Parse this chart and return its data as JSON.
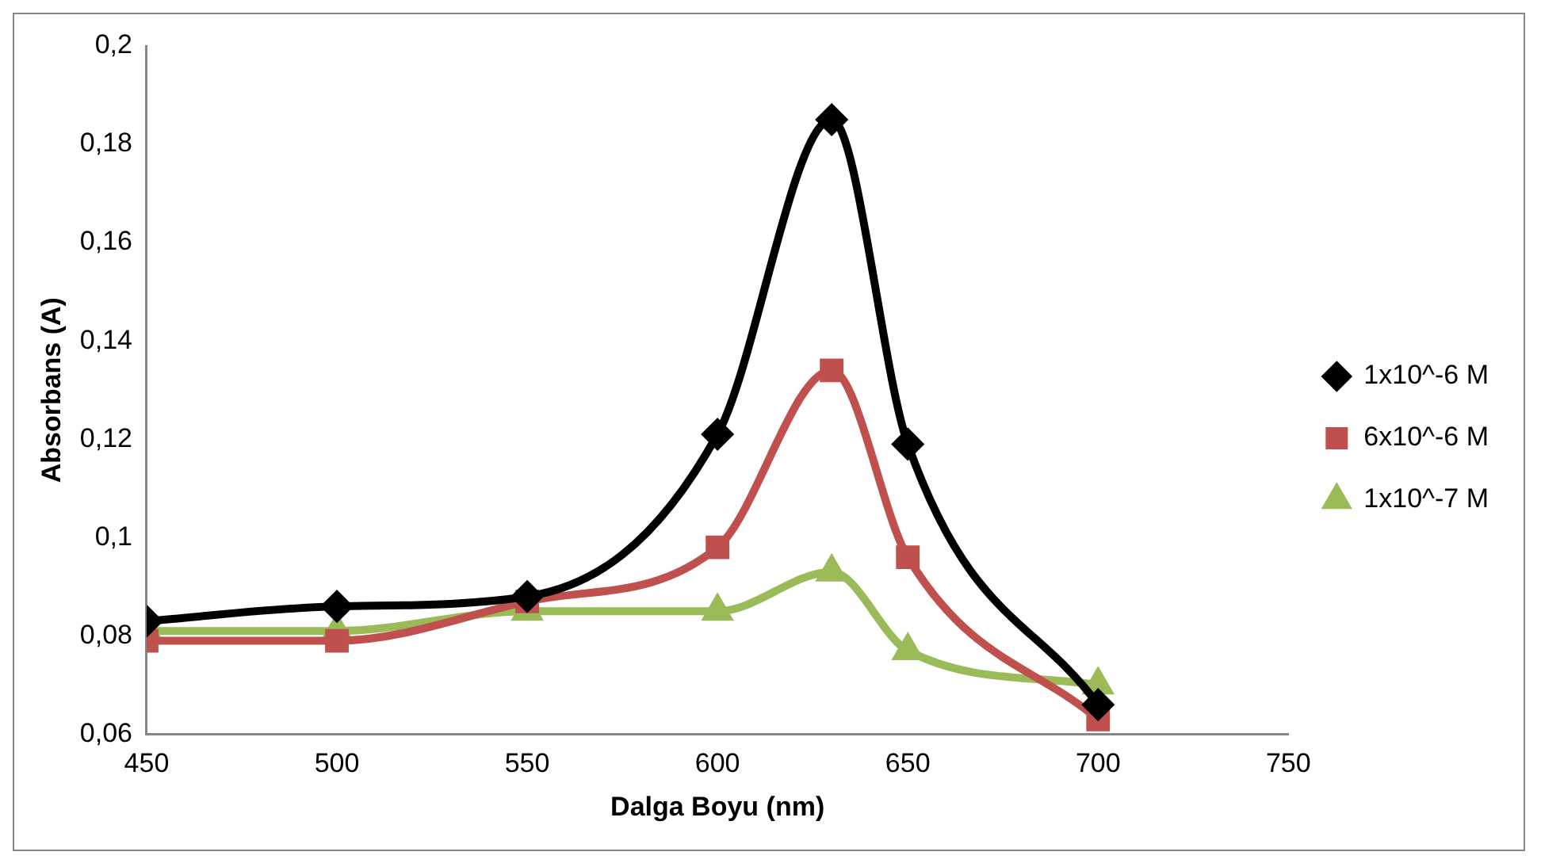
{
  "chart_data": {
    "type": "line",
    "xlabel": "Dalga Boyu (nm)",
    "ylabel": "Absorbans (A)",
    "x": [
      450,
      500,
      550,
      600,
      630,
      650,
      700
    ],
    "series": [
      {
        "name": "1x10^-6 M",
        "color": "#000000",
        "marker": "diamond",
        "values": [
          0.083,
          0.086,
          0.088,
          0.121,
          0.185,
          0.119,
          0.066
        ]
      },
      {
        "name": "6x10^-6 M",
        "color": "#c0504d",
        "marker": "square",
        "values": [
          0.079,
          0.079,
          0.087,
          0.098,
          0.134,
          0.096,
          0.063
        ]
      },
      {
        "name": "1x10^-7 M",
        "color": "#9bbb59",
        "marker": "triangle",
        "values": [
          0.081,
          0.081,
          0.085,
          0.085,
          0.093,
          0.077,
          0.07
        ]
      }
    ],
    "xlim": [
      450,
      750
    ],
    "xticks": [
      450,
      500,
      550,
      600,
      650,
      700,
      750
    ],
    "ylim": [
      0.06,
      0.2
    ],
    "yticks": [
      {
        "value": 0.06,
        "label": "0,06"
      },
      {
        "value": 0.08,
        "label": "0,08"
      },
      {
        "value": 0.1,
        "label": "0,1"
      },
      {
        "value": 0.12,
        "label": "0,12"
      },
      {
        "value": 0.14,
        "label": "0,14"
      },
      {
        "value": 0.16,
        "label": "0,16"
      },
      {
        "value": 0.18,
        "label": "0,18"
      },
      {
        "value": 0.2,
        "label": "0,2"
      }
    ],
    "grid": false,
    "legend": "right",
    "line_style": "solid"
  }
}
